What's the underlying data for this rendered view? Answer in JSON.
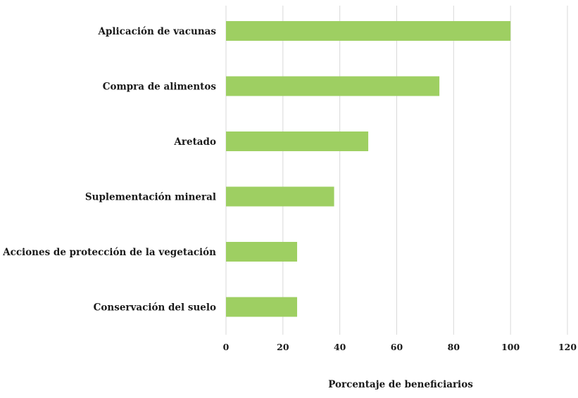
{
  "chart_data": {
    "type": "bar",
    "orientation": "horizontal",
    "categories": [
      "Aplicación de vacunas",
      "Compra de alimentos",
      "Aretado",
      "Suplementación mineral",
      "Acciones de protección de la vegetación",
      "Conservación del suelo"
    ],
    "values": [
      100,
      75,
      50,
      38,
      25,
      25
    ],
    "xlabel": "Porcentaje de beneficiarios",
    "xlim": [
      0,
      120
    ],
    "xticks": [
      "0",
      "20",
      "40",
      "60",
      "80",
      "100",
      "120"
    ],
    "grid": "vertical",
    "bar_color": "#9ecf62",
    "grid_color": "#d9d9d9"
  }
}
